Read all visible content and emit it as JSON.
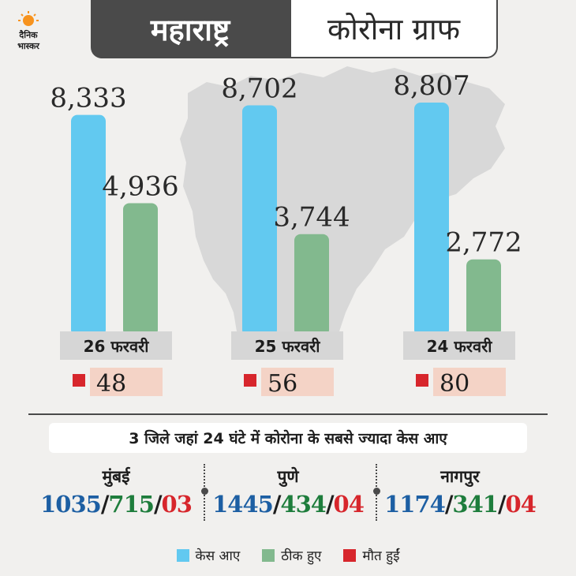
{
  "header": {
    "logo_line1": "दैनिक",
    "logo_line2": "भास्कर",
    "title_left": "महाराष्ट्र",
    "title_right": "कोरोना ग्राफ"
  },
  "colors": {
    "cases": "#62c9f0",
    "recovered": "#82b98e",
    "deaths": "#d7262c",
    "death_bg": "#f4d3c6",
    "date_bg": "#d6d6d6",
    "dark": "#4a4a4a"
  },
  "chart_data": {
    "type": "bar",
    "categories": [
      "26 फरवरी",
      "25 फरवरी",
      "24 फरवरी"
    ],
    "series": [
      {
        "name": "केस आए",
        "values": [
          8333,
          8702,
          8807
        ],
        "labels": [
          "8,333",
          "8,702",
          "8,807"
        ]
      },
      {
        "name": "ठीक हुए",
        "values": [
          4936,
          3744,
          2772
        ],
        "labels": [
          "4,936",
          "3,744",
          "2,772"
        ]
      }
    ],
    "deaths": {
      "name": "मौत हुईं",
      "values": [
        48,
        56,
        80
      ],
      "labels": [
        "48",
        "56",
        "80"
      ]
    },
    "ylim": [
      0,
      9000
    ],
    "legend": [
      "केस आए",
      "ठीक हुए",
      "मौत हुईं"
    ],
    "legend_position": "bottom",
    "grid": false
  },
  "districts": {
    "heading": "3 जिले जहां 24 घंटे में कोरोना के सबसे ज्यादा केस आए",
    "items": [
      {
        "name": "मुंबई",
        "cases": "1035",
        "recovered": "715",
        "deaths": "03"
      },
      {
        "name": "पुणे",
        "cases": "1445",
        "recovered": "434",
        "deaths": "04"
      },
      {
        "name": "नागपुर",
        "cases": "1174",
        "recovered": "341",
        "deaths": "04"
      }
    ]
  },
  "number_colors": {
    "cases": "#1d5fa3",
    "recovered": "#1e7d3c",
    "deaths": "#d7262c",
    "slash": "#1d1d1d"
  }
}
